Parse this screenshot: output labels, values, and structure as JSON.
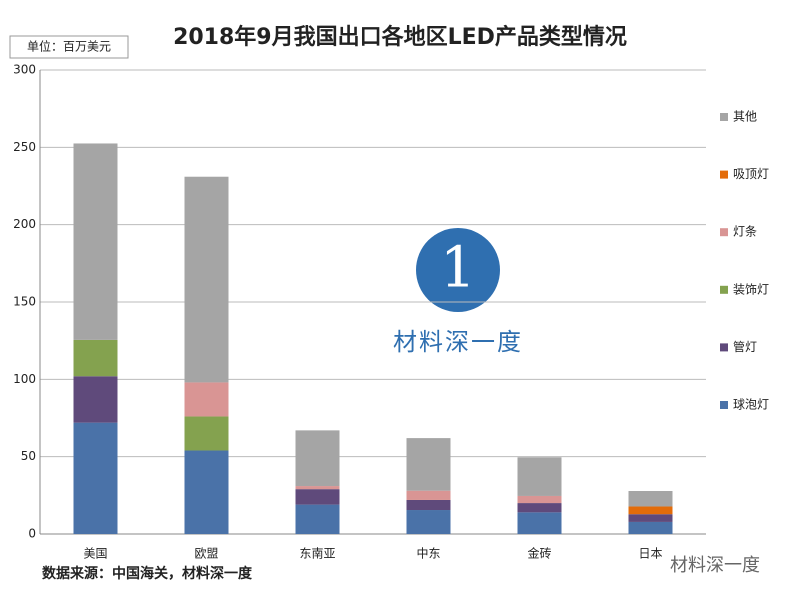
{
  "chart_data": {
    "type": "stacked_bar",
    "title": "2018年9月我国出口各地区LED产品类型情况",
    "unit_label": "单位：百万美元",
    "source": "数据来源：中国海关，材料深一度",
    "watermark": "材料深一度",
    "corner_watermark": "材料深一度",
    "categories": [
      "美国",
      "欧盟",
      "东南亚",
      "中东",
      "金砖",
      "日本"
    ],
    "series": [
      {
        "name": "球泡灯",
        "color": "#4a72a8",
        "values": [
          72,
          54,
          19,
          15.5,
          14,
          7.8
        ]
      },
      {
        "name": "管灯",
        "color": "#5f4a7b",
        "values": [
          30,
          0,
          10,
          6.5,
          6,
          5
        ]
      },
      {
        "name": "装饰灯",
        "color": "#84a24f",
        "values": [
          23.5,
          22,
          0,
          0,
          0,
          0
        ]
      },
      {
        "name": "灯条",
        "color": "#d99594",
        "values": [
          0,
          22,
          2,
          6,
          4.6,
          0
        ]
      },
      {
        "name": "吸顶灯",
        "color": "#e36c0a",
        "values": [
          0,
          0,
          0,
          0,
          0,
          5
        ]
      },
      {
        "name": "其他",
        "color": "#a5a5a5",
        "values": [
          127,
          133,
          36,
          34,
          25,
          10
        ]
      }
    ],
    "ylim": [
      0,
      300
    ],
    "yticks": [
      0,
      50,
      100,
      150,
      200,
      250,
      300
    ],
    "grid": true
  }
}
